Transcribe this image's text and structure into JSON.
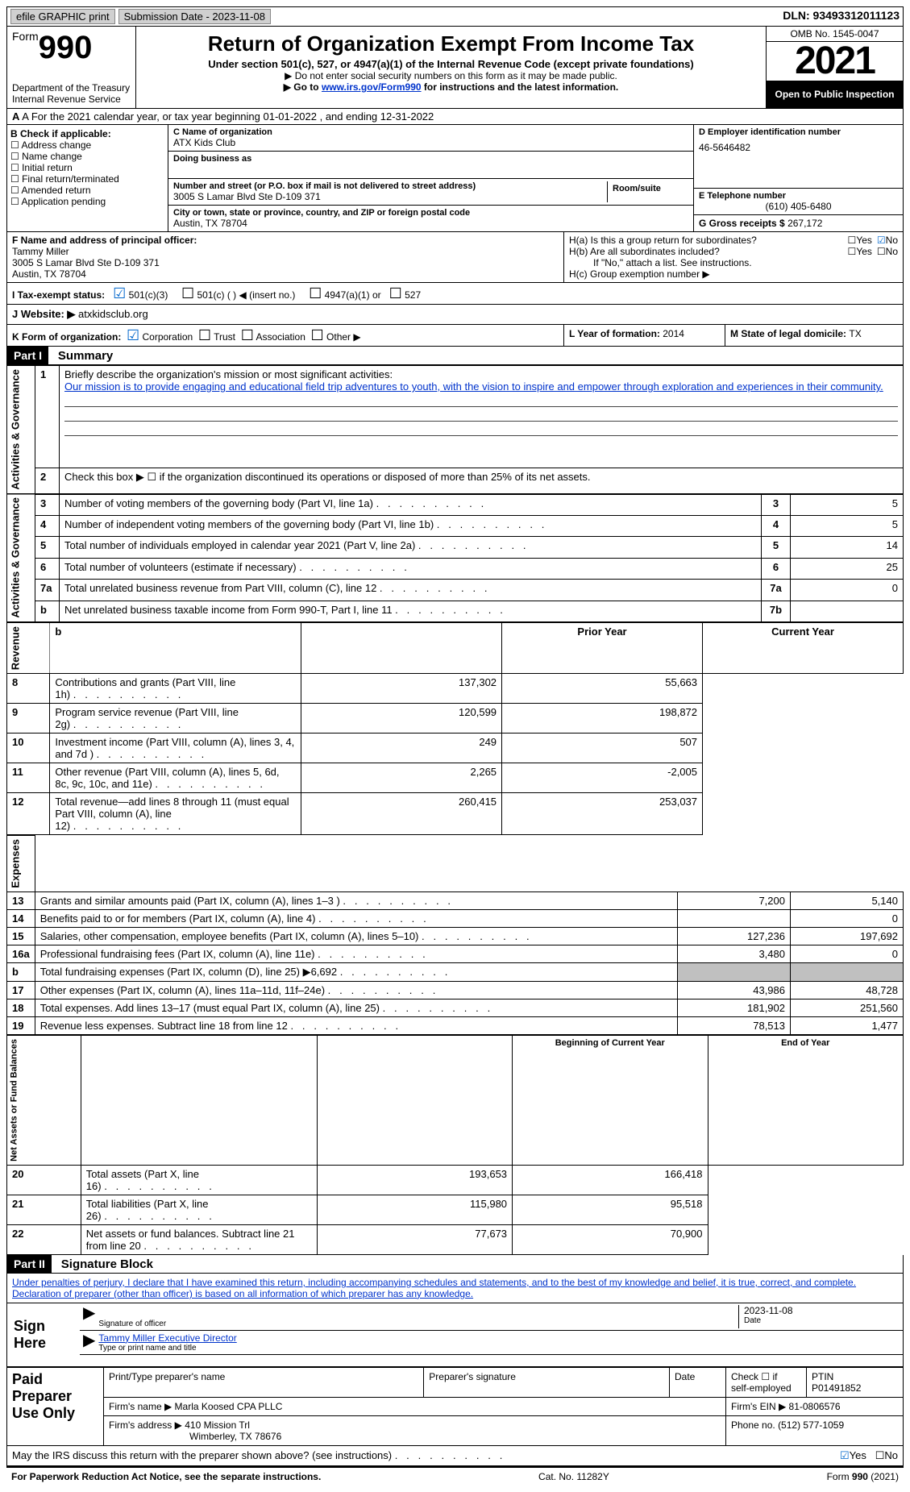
{
  "topbar": {
    "efile": "efile GRAPHIC print",
    "submission_label": "Submission Date - ",
    "submission_date": "2023-11-08",
    "dln_label": "DLN: ",
    "dln": "93493312011123"
  },
  "header": {
    "form_word": "Form",
    "form_num": "990",
    "dept": "Department of the Treasury\nInternal Revenue Service",
    "title": "Return of Organization Exempt From Income Tax",
    "sub": "Under section 501(c), 527, or 4947(a)(1) of the Internal Revenue Code (except private foundations)",
    "note1": "▶ Do not enter social security numbers on this form as it may be made public.",
    "note2a": "▶ Go to ",
    "note2_link": "www.irs.gov/Form990",
    "note2b": " for instructions and the latest information.",
    "omb": "OMB No. 1545-0047",
    "year": "2021",
    "open": "Open to Public Inspection"
  },
  "rowA": "A For the 2021 calendar year, or tax year beginning 01-01-2022   , and ending 12-31-2022",
  "sectionB": {
    "label": "B Check if applicable:",
    "opts": [
      "Address change",
      "Name change",
      "Initial return",
      "Final return/terminated",
      "Amended return",
      "Application pending"
    ],
    "c_label": "C Name of organization",
    "c_name": "ATX Kids Club",
    "dba": "Doing business as",
    "addr_label": "Number and street (or P.O. box if mail is not delivered to street address)",
    "room": "Room/suite",
    "addr": "3005 S Lamar Blvd Ste D-109 371",
    "city_label": "City or town, state or province, country, and ZIP or foreign postal code",
    "city": "Austin, TX  78704",
    "d_label": "D Employer identification number",
    "d_ein": "46-5646482",
    "e_label": "E Telephone number",
    "e_phone": "(610) 405-6480",
    "g_label": "G Gross receipts $ ",
    "g_amount": "267,172"
  },
  "sectionF": {
    "f_label": "F Name and address of principal officer:",
    "name": "Tammy Miller",
    "addr1": "3005 S Lamar Blvd Ste D-109 371",
    "addr2": "Austin, TX  78704",
    "ha": "H(a)  Is this a group return for subordinates?",
    "hb": "H(b)  Are all subordinates included?",
    "hb_note": "If \"No,\" attach a list. See instructions.",
    "hc": "H(c)  Group exemption number ▶"
  },
  "taxStatus": {
    "label": "I   Tax-exempt status:",
    "a": "501(c)(3)",
    "b": "501(c) (  ) ◀ (insert no.)",
    "c": "4947(a)(1) or",
    "d": "527"
  },
  "website": {
    "label": "J   Website: ▶ ",
    "value": "atxkidsclub.org"
  },
  "formOrg": {
    "k": "K Form of organization:",
    "opts": [
      "Corporation",
      "Trust",
      "Association",
      "Other ▶"
    ],
    "l_label": "L Year of formation: ",
    "l_val": "2014",
    "m_label": "M State of legal domicile: ",
    "m_val": "TX"
  },
  "part1": {
    "header": "Part I",
    "title": "Summary",
    "line1_label": "Briefly describe the organization's mission or most significant activities:",
    "mission": "Our mission is to provide engaging and educational field trip adventures to youth, with the vision to inspire and empower through exploration and experiences in their community.",
    "line2": "Check this box ▶ ☐ if the organization discontinued its operations or disposed of more than 25% of its net assets.",
    "sideA": "Activities & Governance",
    "sideR": "Revenue",
    "sideE": "Expenses",
    "sideN": "Net Assets or Fund Balances",
    "rows": [
      {
        "n": "3",
        "t": "Number of voting members of the governing body (Part VI, line 1a)",
        "box": "3",
        "v": "5"
      },
      {
        "n": "4",
        "t": "Number of independent voting members of the governing body (Part VI, line 1b)",
        "box": "4",
        "v": "5"
      },
      {
        "n": "5",
        "t": "Total number of individuals employed in calendar year 2021 (Part V, line 2a)",
        "box": "5",
        "v": "14"
      },
      {
        "n": "6",
        "t": "Total number of volunteers (estimate if necessary)",
        "box": "6",
        "v": "25"
      },
      {
        "n": "7a",
        "t": "Total unrelated business revenue from Part VIII, column (C), line 12",
        "box": "7a",
        "v": "0"
      },
      {
        "n": "b",
        "t": "Net unrelated business taxable income from Form 990-T, Part I, line 11",
        "box": "7b",
        "v": ""
      }
    ],
    "col_prior": "Prior Year",
    "col_current": "Current Year",
    "revRows": [
      {
        "n": "8",
        "t": "Contributions and grants (Part VIII, line 1h)",
        "p": "137,302",
        "c": "55,663"
      },
      {
        "n": "9",
        "t": "Program service revenue (Part VIII, line 2g)",
        "p": "120,599",
        "c": "198,872"
      },
      {
        "n": "10",
        "t": "Investment income (Part VIII, column (A), lines 3, 4, and 7d )",
        "p": "249",
        "c": "507"
      },
      {
        "n": "11",
        "t": "Other revenue (Part VIII, column (A), lines 5, 6d, 8c, 9c, 10c, and 11e)",
        "p": "2,265",
        "c": "-2,005"
      },
      {
        "n": "12",
        "t": "Total revenue—add lines 8 through 11 (must equal Part VIII, column (A), line 12)",
        "p": "260,415",
        "c": "253,037"
      }
    ],
    "expRows": [
      {
        "n": "13",
        "t": "Grants and similar amounts paid (Part IX, column (A), lines 1–3 )",
        "p": "7,200",
        "c": "5,140"
      },
      {
        "n": "14",
        "t": "Benefits paid to or for members (Part IX, column (A), line 4)",
        "p": "",
        "c": "0"
      },
      {
        "n": "15",
        "t": "Salaries, other compensation, employee benefits (Part IX, column (A), lines 5–10)",
        "p": "127,236",
        "c": "197,692"
      },
      {
        "n": "16a",
        "t": "Professional fundraising fees (Part IX, column (A), line 11e)",
        "p": "3,480",
        "c": "0"
      },
      {
        "n": "b",
        "t": "Total fundraising expenses (Part IX, column (D), line 25) ▶6,692",
        "p": "GRAY",
        "c": "GRAY"
      },
      {
        "n": "17",
        "t": "Other expenses (Part IX, column (A), lines 11a–11d, 11f–24e)",
        "p": "43,986",
        "c": "48,728"
      },
      {
        "n": "18",
        "t": "Total expenses. Add lines 13–17 (must equal Part IX, column (A), line 25)",
        "p": "181,902",
        "c": "251,560"
      },
      {
        "n": "19",
        "t": "Revenue less expenses. Subtract line 18 from line 12",
        "p": "78,513",
        "c": "1,477"
      }
    ],
    "col_begin": "Beginning of Current Year",
    "col_end": "End of Year",
    "netRows": [
      {
        "n": "20",
        "t": "Total assets (Part X, line 16)",
        "p": "193,653",
        "c": "166,418"
      },
      {
        "n": "21",
        "t": "Total liabilities (Part X, line 26)",
        "p": "115,980",
        "c": "95,518"
      },
      {
        "n": "22",
        "t": "Net assets or fund balances. Subtract line 21 from line 20",
        "p": "77,673",
        "c": "70,900"
      }
    ]
  },
  "part2": {
    "header": "Part II",
    "title": "Signature Block",
    "decl": "Under penalties of perjury, I declare that I have examined this return, including accompanying schedules and statements, and to the best of my knowledge and belief, it is true, correct, and complete. Declaration of preparer (other than officer) is based on all information of which preparer has any knowledge.",
    "sign_here": "Sign Here",
    "sig_officer": "Signature of officer",
    "sig_date": "2023-11-08",
    "date_label": "Date",
    "typed_name": "Tammy Miller  Executive Director",
    "typed_label": "Type or print name and title"
  },
  "paid": {
    "label": "Paid Preparer Use Only",
    "h1": "Print/Type preparer's name",
    "h2": "Preparer's signature",
    "h3": "Date",
    "h4a": "Check ☐ if",
    "h4b": "self-employed",
    "h5": "PTIN",
    "ptin": "P01491852",
    "firm_label": "Firm's name    ▶",
    "firm": "Marla Koosed CPA PLLC",
    "ein_label": "Firm's EIN ▶",
    "ein": "81-0806576",
    "addr_label": "Firm's address ▶",
    "addr1": "410 Mission Trl",
    "addr2": "Wimberley, TX  78676",
    "phone_label": "Phone no. ",
    "phone": "(512) 577-1059"
  },
  "discuss": "May the IRS discuss this return with the preparer shown above? (see instructions)",
  "footer": {
    "left": "For Paperwork Reduction Act Notice, see the separate instructions.",
    "mid": "Cat. No. 11282Y",
    "right": "Form 990 (2021)"
  },
  "yes": "Yes",
  "no": "No"
}
